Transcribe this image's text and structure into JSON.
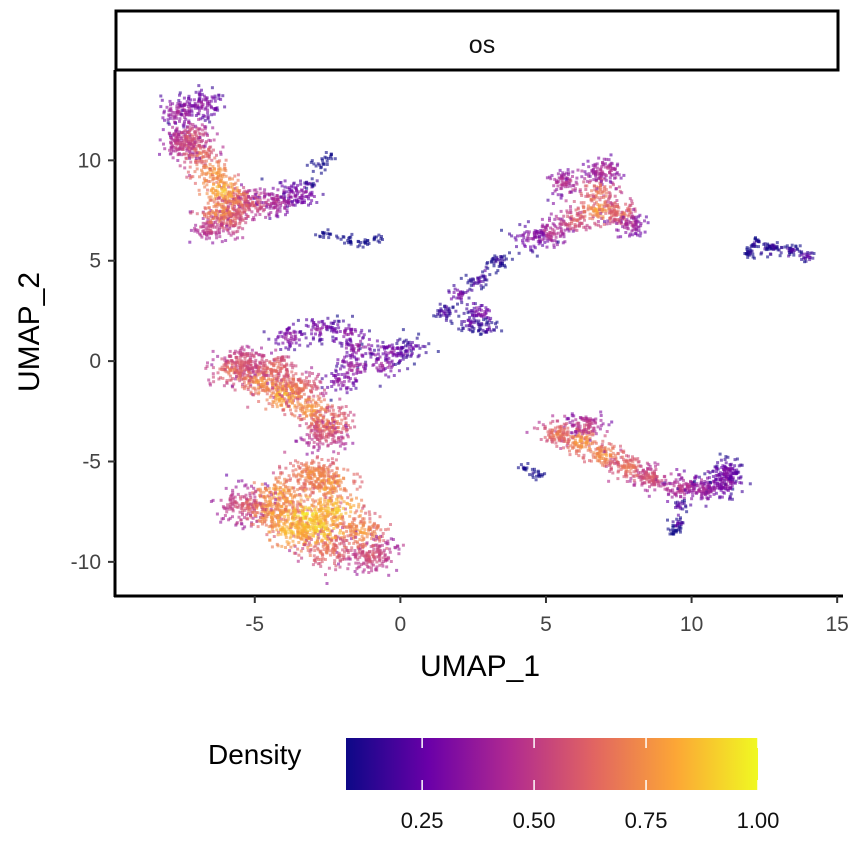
{
  "chart_data": {
    "type": "scatter",
    "facet": "os",
    "xlabel": "UMAP_1",
    "ylabel": "UMAP_2",
    "xlim": [
      -9.8,
      15.2
    ],
    "ylim": [
      -11.7,
      14.5
    ],
    "x_ticks": [
      -5,
      0,
      5,
      10,
      15
    ],
    "y_ticks": [
      -10,
      -5,
      0,
      5,
      10
    ],
    "grid": false,
    "legend": {
      "title": "Density",
      "placement": "bottom",
      "ticks": [
        "0.25",
        "0.50",
        "0.75",
        "1.00"
      ],
      "tick_values": [
        0.25,
        0.5,
        0.75,
        1.0
      ],
      "range": [
        0.08,
        1.0
      ]
    },
    "colormap": [
      "#0d0887",
      "#6a00a8",
      "#b12a90",
      "#e16462",
      "#fca636",
      "#f0f921"
    ],
    "clusters": [
      {
        "id": "top-left",
        "points": [
          [
            -7.6,
            12.4,
            0.45
          ],
          [
            -7.2,
            11.2,
            0.62
          ],
          [
            -6.9,
            10.3,
            0.7
          ],
          [
            -6.4,
            9.4,
            0.82
          ],
          [
            -6.1,
            8.5,
            0.9
          ],
          [
            -6.2,
            7.4,
            0.8
          ],
          [
            -5.6,
            7.9,
            0.72
          ],
          [
            -5.0,
            7.8,
            0.6
          ],
          [
            -4.2,
            8.0,
            0.48
          ],
          [
            -3.4,
            8.3,
            0.38
          ],
          [
            -7.5,
            10.8,
            0.55
          ],
          [
            -6.8,
            12.8,
            0.4
          ],
          [
            -5.8,
            7.0,
            0.66
          ],
          [
            -6.5,
            6.6,
            0.55
          ]
        ],
        "spread": 0.35,
        "count": 1350
      },
      {
        "id": "top-left-tail",
        "points": [
          [
            -2.4,
            10.2,
            0.1
          ],
          [
            -2.8,
            9.8,
            0.12
          ],
          [
            -3.2,
            8.8,
            0.22
          ],
          [
            -2.6,
            6.3,
            0.12
          ],
          [
            -1.8,
            6.0,
            0.1
          ],
          [
            -0.8,
            6.1,
            0.1
          ],
          [
            -1.3,
            5.9,
            0.12
          ]
        ],
        "spread": 0.12,
        "count": 100
      },
      {
        "id": "top-right",
        "points": [
          [
            7.0,
            9.5,
            0.5
          ],
          [
            6.8,
            8.5,
            0.72
          ],
          [
            6.8,
            7.5,
            0.82
          ],
          [
            7.6,
            7.4,
            0.7
          ],
          [
            6.0,
            7.0,
            0.65
          ],
          [
            5.2,
            6.4,
            0.52
          ],
          [
            4.5,
            6.2,
            0.4
          ],
          [
            5.6,
            8.9,
            0.5
          ],
          [
            7.9,
            6.8,
            0.45
          ]
        ],
        "spread": 0.3,
        "count": 750
      },
      {
        "id": "right-small",
        "points": [
          [
            12.2,
            5.9,
            0.2
          ],
          [
            12.8,
            5.7,
            0.22
          ],
          [
            13.5,
            5.5,
            0.25
          ],
          [
            14.0,
            5.2,
            0.3
          ],
          [
            12.0,
            5.4,
            0.18
          ]
        ],
        "spread": 0.12,
        "count": 140
      },
      {
        "id": "middle-bridge",
        "points": [
          [
            3.4,
            5.0,
            0.2
          ],
          [
            2.7,
            4.0,
            0.25
          ],
          [
            2.0,
            3.4,
            0.35
          ],
          [
            2.8,
            2.4,
            0.38
          ],
          [
            2.4,
            1.9,
            0.3
          ],
          [
            3.0,
            1.6,
            0.25
          ],
          [
            1.5,
            2.4,
            0.25
          ]
        ],
        "spread": 0.2,
        "count": 260
      },
      {
        "id": "middle-left",
        "points": [
          [
            -5.4,
            0.0,
            0.62
          ],
          [
            -4.8,
            -1.0,
            0.8
          ],
          [
            -4.0,
            -1.7,
            0.88
          ],
          [
            -3.1,
            -2.4,
            0.82
          ],
          [
            -2.4,
            -3.1,
            0.74
          ],
          [
            -5.8,
            -0.5,
            0.7
          ],
          [
            -4.3,
            -0.3,
            0.68
          ],
          [
            -3.5,
            -1.3,
            0.7
          ],
          [
            -2.6,
            -3.7,
            0.6
          ]
        ],
        "spread": 0.38,
        "count": 1100
      },
      {
        "id": "middle-arc",
        "points": [
          [
            -3.8,
            1.2,
            0.4
          ],
          [
            -2.8,
            1.6,
            0.38
          ],
          [
            -1.8,
            1.4,
            0.38
          ],
          [
            -1.4,
            0.7,
            0.42
          ],
          [
            -1.6,
            -0.3,
            0.45
          ],
          [
            -0.6,
            -0.2,
            0.42
          ],
          [
            -0.3,
            0.5,
            0.35
          ],
          [
            0.4,
            0.6,
            0.3
          ],
          [
            -2.0,
            -1.0,
            0.4
          ]
        ],
        "spread": 0.3,
        "count": 480
      },
      {
        "id": "bottom-left",
        "points": [
          [
            -3.3,
            -7.7,
            0.98
          ],
          [
            -2.8,
            -8.4,
            0.95
          ],
          [
            -3.8,
            -8.5,
            0.9
          ],
          [
            -2.2,
            -7.4,
            0.92
          ],
          [
            -4.5,
            -7.5,
            0.82
          ],
          [
            -2.4,
            -6.0,
            0.82
          ],
          [
            -1.3,
            -8.5,
            0.8
          ],
          [
            -1.0,
            -9.7,
            0.6
          ],
          [
            -5.4,
            -7.2,
            0.6
          ],
          [
            -3.1,
            -5.6,
            0.78
          ],
          [
            -2.5,
            -9.5,
            0.7
          ],
          [
            -4.2,
            -6.6,
            0.85
          ]
        ],
        "spread": 0.45,
        "count": 1750
      },
      {
        "id": "bottom-right",
        "points": [
          [
            5.4,
            -3.6,
            0.72
          ],
          [
            6.2,
            -4.0,
            0.82
          ],
          [
            7.0,
            -4.7,
            0.8
          ],
          [
            7.8,
            -5.3,
            0.72
          ],
          [
            8.6,
            -5.8,
            0.62
          ],
          [
            9.6,
            -6.3,
            0.52
          ],
          [
            10.4,
            -6.4,
            0.45
          ],
          [
            11.2,
            -6.1,
            0.4
          ],
          [
            11.2,
            -5.5,
            0.35
          ],
          [
            6.4,
            -3.2,
            0.55
          ]
        ],
        "spread": 0.3,
        "count": 1000
      },
      {
        "id": "bottom-right-tail",
        "points": [
          [
            9.6,
            -7.2,
            0.3
          ],
          [
            9.5,
            -8.1,
            0.28
          ],
          [
            9.4,
            -8.4,
            0.15
          ],
          [
            4.2,
            -5.3,
            0.15
          ],
          [
            4.7,
            -5.6,
            0.15
          ]
        ],
        "spread": 0.13,
        "count": 90
      }
    ]
  }
}
